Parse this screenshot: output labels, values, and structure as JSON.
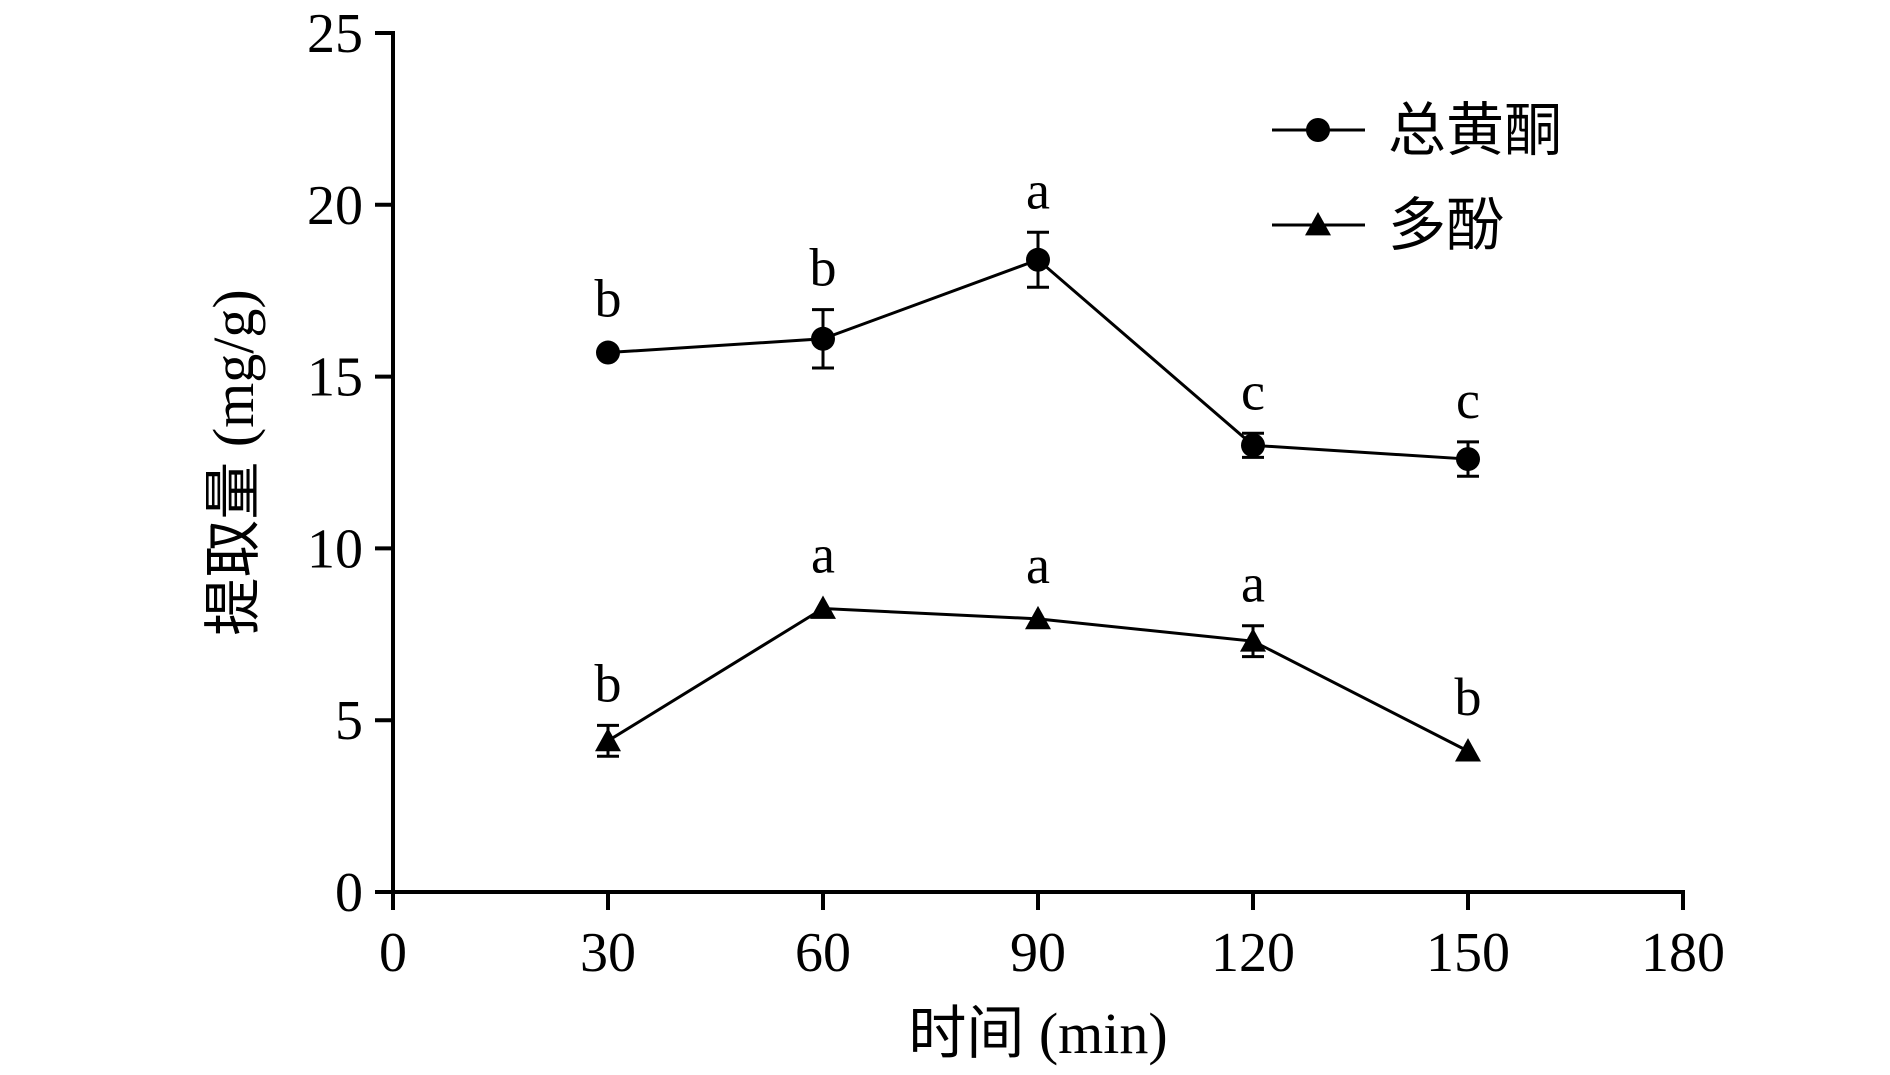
{
  "chart_data": {
    "type": "line",
    "xlabel": "时间 (min)",
    "ylabel": "提取量 (mg/g)",
    "xlim": [
      0,
      180
    ],
    "ylim": [
      0,
      25
    ],
    "xticks": [
      "0",
      "30",
      "60",
      "90",
      "120",
      "150",
      "180"
    ],
    "yticks": [
      "0",
      "5",
      "10",
      "15",
      "20",
      "25"
    ],
    "grid": false,
    "legend": "top-right",
    "x": [
      30,
      60,
      90,
      120,
      150
    ],
    "series": [
      {
        "name": "总黄酮",
        "marker": "circle",
        "values": [
          15.7,
          16.1,
          18.4,
          13.0,
          12.6
        ],
        "errors": [
          0.0,
          0.85,
          0.8,
          0.35,
          0.5
        ],
        "labels": [
          "b",
          "b",
          "a",
          "c",
          "c"
        ]
      },
      {
        "name": "多酚",
        "marker": "triangle",
        "values": [
          4.4,
          8.25,
          7.95,
          7.3,
          4.1
        ],
        "errors": [
          0.45,
          0.0,
          0.0,
          0.45,
          0.0
        ],
        "labels": [
          "b",
          "a",
          "a",
          "a",
          "b"
        ]
      }
    ]
  }
}
